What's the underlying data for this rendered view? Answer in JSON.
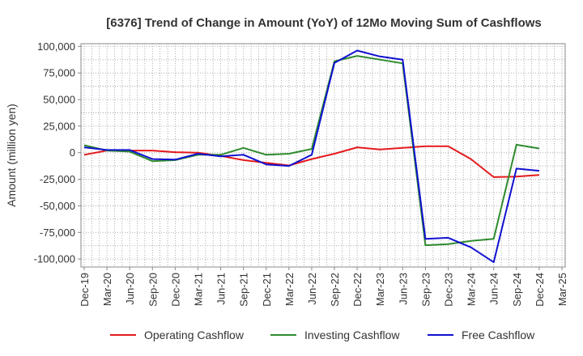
{
  "chart_data": {
    "type": "line",
    "title": "[6376]  Trend of Change in Amount (YoY) of 12Mo Moving Sum of Cashflows",
    "xlabel": "",
    "ylabel": "Amount (million yen)",
    "ylim": [
      -107500,
      102500
    ],
    "yticks": [
      100000,
      75000,
      50000,
      25000,
      0,
      -25000,
      -50000,
      -75000,
      -100000
    ],
    "ytick_labels": [
      "100,000",
      "75,000",
      "50,000",
      "25,000",
      "0",
      "-25,000",
      "-50,000",
      "-75,000",
      "-100,000"
    ],
    "categories": [
      "Dec-19",
      "Mar-20",
      "Jun-20",
      "Sep-20",
      "Dec-20",
      "Mar-21",
      "Jun-21",
      "Sep-21",
      "Dec-21",
      "Mar-22",
      "Jun-22",
      "Sep-22",
      "Dec-22",
      "Mar-23",
      "Jun-23",
      "Sep-23",
      "Dec-23",
      "Mar-24",
      "Jun-24",
      "Sep-24",
      "Dec-24",
      "Mar-25"
    ],
    "grid": true,
    "legend_position": "bottom",
    "series": [
      {
        "name": "Operating Cashflow",
        "color": "#e31a1c",
        "values": [
          -2000,
          2000,
          2000,
          2000,
          500,
          0,
          -3000,
          -7000,
          -9500,
          -12000,
          -6000,
          -1000,
          5000,
          3000,
          4500,
          6000,
          6000,
          -6000,
          -23000,
          -22500,
          -21000,
          null
        ]
      },
      {
        "name": "Investing Cashflow",
        "color": "#2e8b2e",
        "values": [
          7000,
          2000,
          1000,
          -8000,
          -7000,
          -2000,
          -2000,
          4500,
          -2000,
          -1000,
          3500,
          86000,
          91000,
          87500,
          84000,
          -87000,
          -86000,
          -83000,
          -81000,
          7500,
          4000,
          null
        ]
      },
      {
        "name": "Free Cashflow",
        "color": "#1010d0",
        "values": [
          5000,
          2500,
          2500,
          -6000,
          -6500,
          -1000,
          -3500,
          -2000,
          -11000,
          -12500,
          -2000,
          84500,
          96000,
          90500,
          87500,
          -81000,
          -80000,
          -89000,
          -103000,
          -15000,
          -17000,
          null
        ]
      }
    ]
  }
}
